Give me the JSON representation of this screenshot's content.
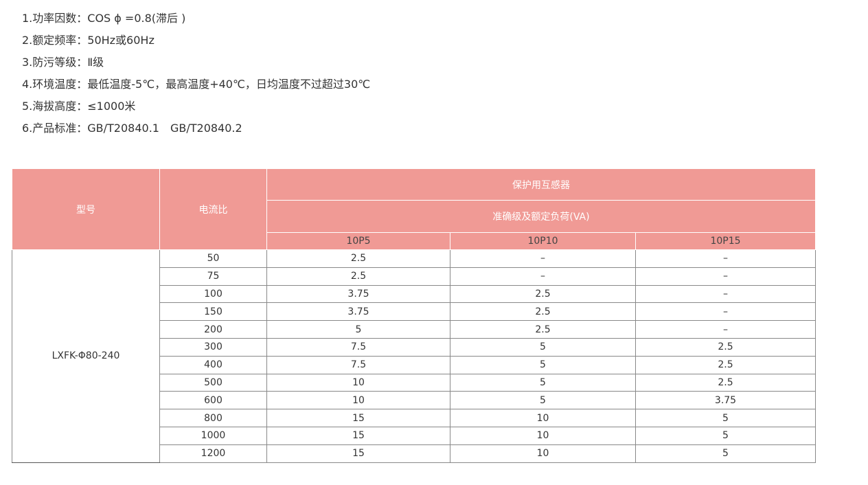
{
  "specs": [
    "1.功率因数：COS ϕ =0.8(滞后 )",
    "2.额定频率：50Hz或60Hz",
    "3.防污等级：Ⅱ级",
    "4.环境温度：最低温度-5℃，最高温度+40℃，日均温度不过超过30℃",
    "5.海拔高度：≤1000米",
    "6.产品标准：GB/T20840.1　GB/T20840.2"
  ],
  "table": {
    "header_color": "#f09a95",
    "model_header": "型号",
    "ratio_header": "电流比",
    "group_header": "保护用互感器",
    "subgroup_header": "准确级及额定负荷(VA)",
    "classes": [
      "10P5",
      "10P10",
      "10P15"
    ],
    "model": "LXFK-Φ80-240",
    "rows": [
      [
        "50",
        "2.5",
        "–",
        "–"
      ],
      [
        "75",
        "2.5",
        "–",
        "–"
      ],
      [
        "100",
        "3.75",
        "2.5",
        "–"
      ],
      [
        "150",
        "3.75",
        "2.5",
        "–"
      ],
      [
        "200",
        "5",
        "2.5",
        "–"
      ],
      [
        "300",
        "7.5",
        "5",
        "2.5"
      ],
      [
        "400",
        "7.5",
        "5",
        "2.5"
      ],
      [
        "500",
        "10",
        "5",
        "2.5"
      ],
      [
        "600",
        "10",
        "5",
        "3.75"
      ],
      [
        "800",
        "15",
        "10",
        "5"
      ],
      [
        "1000",
        "15",
        "10",
        "5"
      ],
      [
        "1200",
        "15",
        "10",
        "5"
      ]
    ]
  }
}
